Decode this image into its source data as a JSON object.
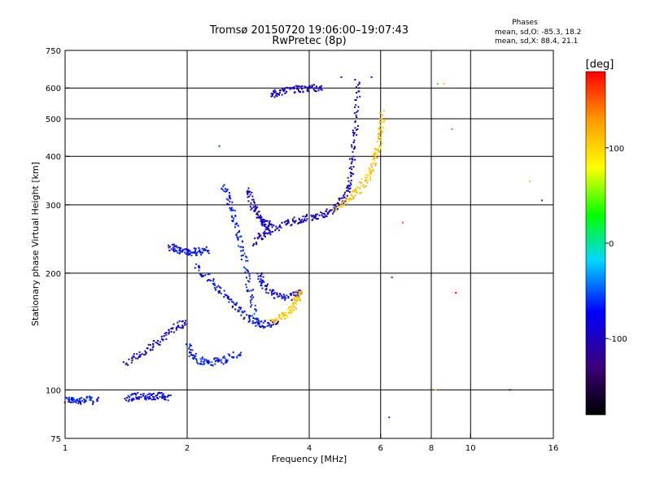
{
  "chart_data": {
    "type": "scatter",
    "title": "Tromsø 20150720 19:06:00–19:07:43",
    "subtitle": "RwPretec (8p)",
    "xlabel": "Frequency [MHz]",
    "ylabel": "Stationary phase Virtual Height [km]",
    "x_scale": "log",
    "y_scale": "log",
    "xlim": [
      1,
      16
    ],
    "ylim": [
      75,
      750
    ],
    "grid": true,
    "x_ticks": [
      {
        "value": 1,
        "label": "1"
      },
      {
        "value": 2,
        "label": "2"
      },
      {
        "value": 4,
        "label": "4"
      },
      {
        "value": 6,
        "label": "6"
      },
      {
        "value": 8,
        "label": "8"
      },
      {
        "value": 10,
        "label": "10"
      },
      {
        "value": 16,
        "label": "16"
      }
    ],
    "x_gridlines": [
      2,
      4,
      6,
      8,
      10
    ],
    "y_ticks": [
      {
        "value": 75,
        "label": "75"
      },
      {
        "value": 100,
        "label": "100"
      },
      {
        "value": 200,
        "label": "200"
      },
      {
        "value": 300,
        "label": "300"
      },
      {
        "value": 400,
        "label": "400"
      },
      {
        "value": 500,
        "label": "500"
      },
      {
        "value": 600,
        "label": "600"
      },
      {
        "value": 750,
        "label": "750"
      }
    ],
    "y_gridlines": [
      100,
      200,
      300,
      400,
      500,
      600
    ],
    "stats": {
      "heading": "Phases",
      "line_o": "mean, sd,O: -85.3, 18.2",
      "line_x": "mean, sd,X: 88.4, 21.1"
    },
    "colorbar": {
      "label": "[deg]",
      "range": [
        -180,
        180
      ],
      "ticks": [
        {
          "value": 100,
          "label": "100"
        },
        {
          "value": 0,
          "label": "0"
        },
        {
          "value": -100,
          "label": "-100"
        }
      ]
    },
    "traces": [
      {
        "points": [
          [
            1.0,
            95
          ],
          [
            1.05,
            94
          ],
          [
            1.12,
            95
          ],
          [
            1.2,
            94
          ]
        ],
        "phase": -70
      },
      {
        "points": [
          [
            1.4,
            95
          ],
          [
            1.5,
            97
          ],
          [
            1.6,
            96
          ],
          [
            1.7,
            97
          ],
          [
            1.8,
            96
          ]
        ],
        "phase": -80
      },
      {
        "points": [
          [
            1.4,
            118
          ],
          [
            1.55,
            125
          ],
          [
            1.7,
            135
          ],
          [
            1.85,
            145
          ],
          [
            2.0,
            150
          ]
        ],
        "phase": -95
      },
      {
        "points": [
          [
            1.8,
            235
          ],
          [
            1.9,
            230
          ],
          [
            2.0,
            228
          ],
          [
            2.1,
            228
          ],
          [
            2.25,
            230
          ]
        ],
        "phase": -75
      },
      {
        "points": [
          [
            2.45,
            340
          ],
          [
            2.55,
            300
          ],
          [
            2.65,
            260
          ],
          [
            2.75,
            220
          ],
          [
            2.85,
            180
          ],
          [
            2.95,
            150
          ]
        ],
        "phase": -70
      },
      {
        "points": [
          [
            2.1,
            210
          ],
          [
            2.3,
            190
          ],
          [
            2.5,
            175
          ],
          [
            2.7,
            160
          ],
          [
            2.9,
            150
          ],
          [
            3.1,
            148
          ],
          [
            3.3,
            150
          ]
        ],
        "phase": -75
      },
      {
        "points": [
          [
            2.0,
            130
          ],
          [
            2.1,
            120
          ],
          [
            2.25,
            118
          ],
          [
            2.45,
            120
          ],
          [
            2.7,
            125
          ]
        ],
        "phase": -70
      },
      {
        "points": [
          [
            2.8,
            330
          ],
          [
            2.9,
            300
          ],
          [
            3.0,
            280
          ],
          [
            3.1,
            270
          ],
          [
            3.2,
            265
          ]
        ],
        "phase": -95
      },
      {
        "points": [
          [
            2.9,
            240
          ],
          [
            3.1,
            255
          ],
          [
            3.4,
            268
          ],
          [
            3.7,
            275
          ],
          [
            4.0,
            280
          ],
          [
            4.3,
            285
          ],
          [
            4.6,
            295
          ],
          [
            4.8,
            310
          ],
          [
            5.0,
            340
          ],
          [
            5.1,
            400
          ],
          [
            5.2,
            500
          ],
          [
            5.25,
            640
          ]
        ],
        "phase": -95
      },
      {
        "points": [
          [
            3.2,
            580
          ],
          [
            3.4,
            590
          ],
          [
            3.7,
            600
          ],
          [
            4.0,
            600
          ],
          [
            4.3,
            605
          ]
        ],
        "phase": -95
      },
      {
        "points": [
          [
            3.0,
            200
          ],
          [
            3.1,
            185
          ],
          [
            3.3,
            175
          ],
          [
            3.6,
            175
          ],
          [
            3.8,
            180
          ]
        ],
        "phase": -85
      },
      {
        "points": [
          [
            3.2,
            150
          ],
          [
            3.4,
            155
          ],
          [
            3.6,
            162
          ],
          [
            3.7,
            170
          ],
          [
            3.8,
            180
          ]
        ],
        "phase": 105
      },
      {
        "points": [
          [
            4.6,
            295
          ],
          [
            5.0,
            310
          ],
          [
            5.3,
            330
          ],
          [
            5.6,
            360
          ],
          [
            5.8,
            400
          ],
          [
            5.95,
            450
          ],
          [
            6.05,
            520
          ]
        ],
        "phase": 110
      }
    ],
    "isolated_points": [
      {
        "x": 2.4,
        "y": 425,
        "phase": -60
      },
      {
        "x": 4.8,
        "y": 640,
        "phase": -80
      },
      {
        "x": 5.7,
        "y": 640,
        "phase": -80
      },
      {
        "x": 6.4,
        "y": 195,
        "phase": -60
      },
      {
        "x": 6.3,
        "y": 85,
        "phase": -60
      },
      {
        "x": 8.3,
        "y": 615,
        "phase": 40
      },
      {
        "x": 8.6,
        "y": 615,
        "phase": 110
      },
      {
        "x": 9.0,
        "y": 470,
        "phase": 150
      },
      {
        "x": 9.2,
        "y": 178,
        "phase": 175
      },
      {
        "x": 8.2,
        "y": 100,
        "phase": 110
      },
      {
        "x": 12.5,
        "y": 100,
        "phase": -110
      },
      {
        "x": 14.0,
        "y": 345,
        "phase": 110
      },
      {
        "x": 15.0,
        "y": 308,
        "phase": -60
      },
      {
        "x": 6.8,
        "y": 270,
        "phase": 155
      }
    ]
  }
}
